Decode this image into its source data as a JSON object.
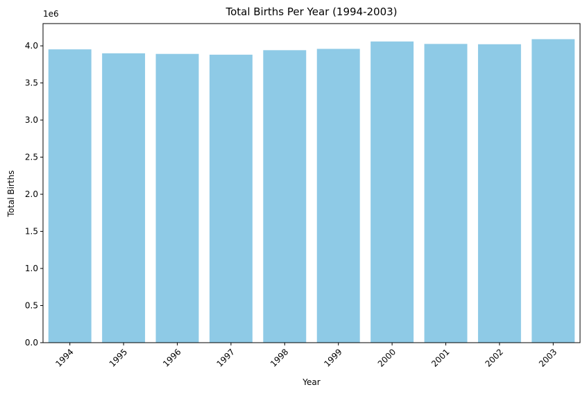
{
  "chart_data": {
    "type": "bar",
    "title": "Total Births Per Year (1994-2003)",
    "xlabel": "Year",
    "ylabel": "Total Births",
    "y_offset_label": "1e6",
    "categories": [
      "1994",
      "1995",
      "1996",
      "1997",
      "1998",
      "1999",
      "2000",
      "2001",
      "2002",
      "2003"
    ],
    "values": [
      3952767,
      3899589,
      3891494,
      3880894,
      3941553,
      3959417,
      4058814,
      4025933,
      4021726,
      4089950
    ],
    "ylim": [
      0,
      4300000
    ],
    "yticks": [
      0,
      500000,
      1000000,
      1500000,
      2000000,
      2500000,
      3000000,
      3500000,
      4000000
    ],
    "ytick_labels": [
      "0.0",
      "0.5",
      "1.0",
      "1.5",
      "2.0",
      "2.5",
      "3.0",
      "3.5",
      "4.0"
    ],
    "bar_color": "#8ecae6",
    "grid": false
  }
}
